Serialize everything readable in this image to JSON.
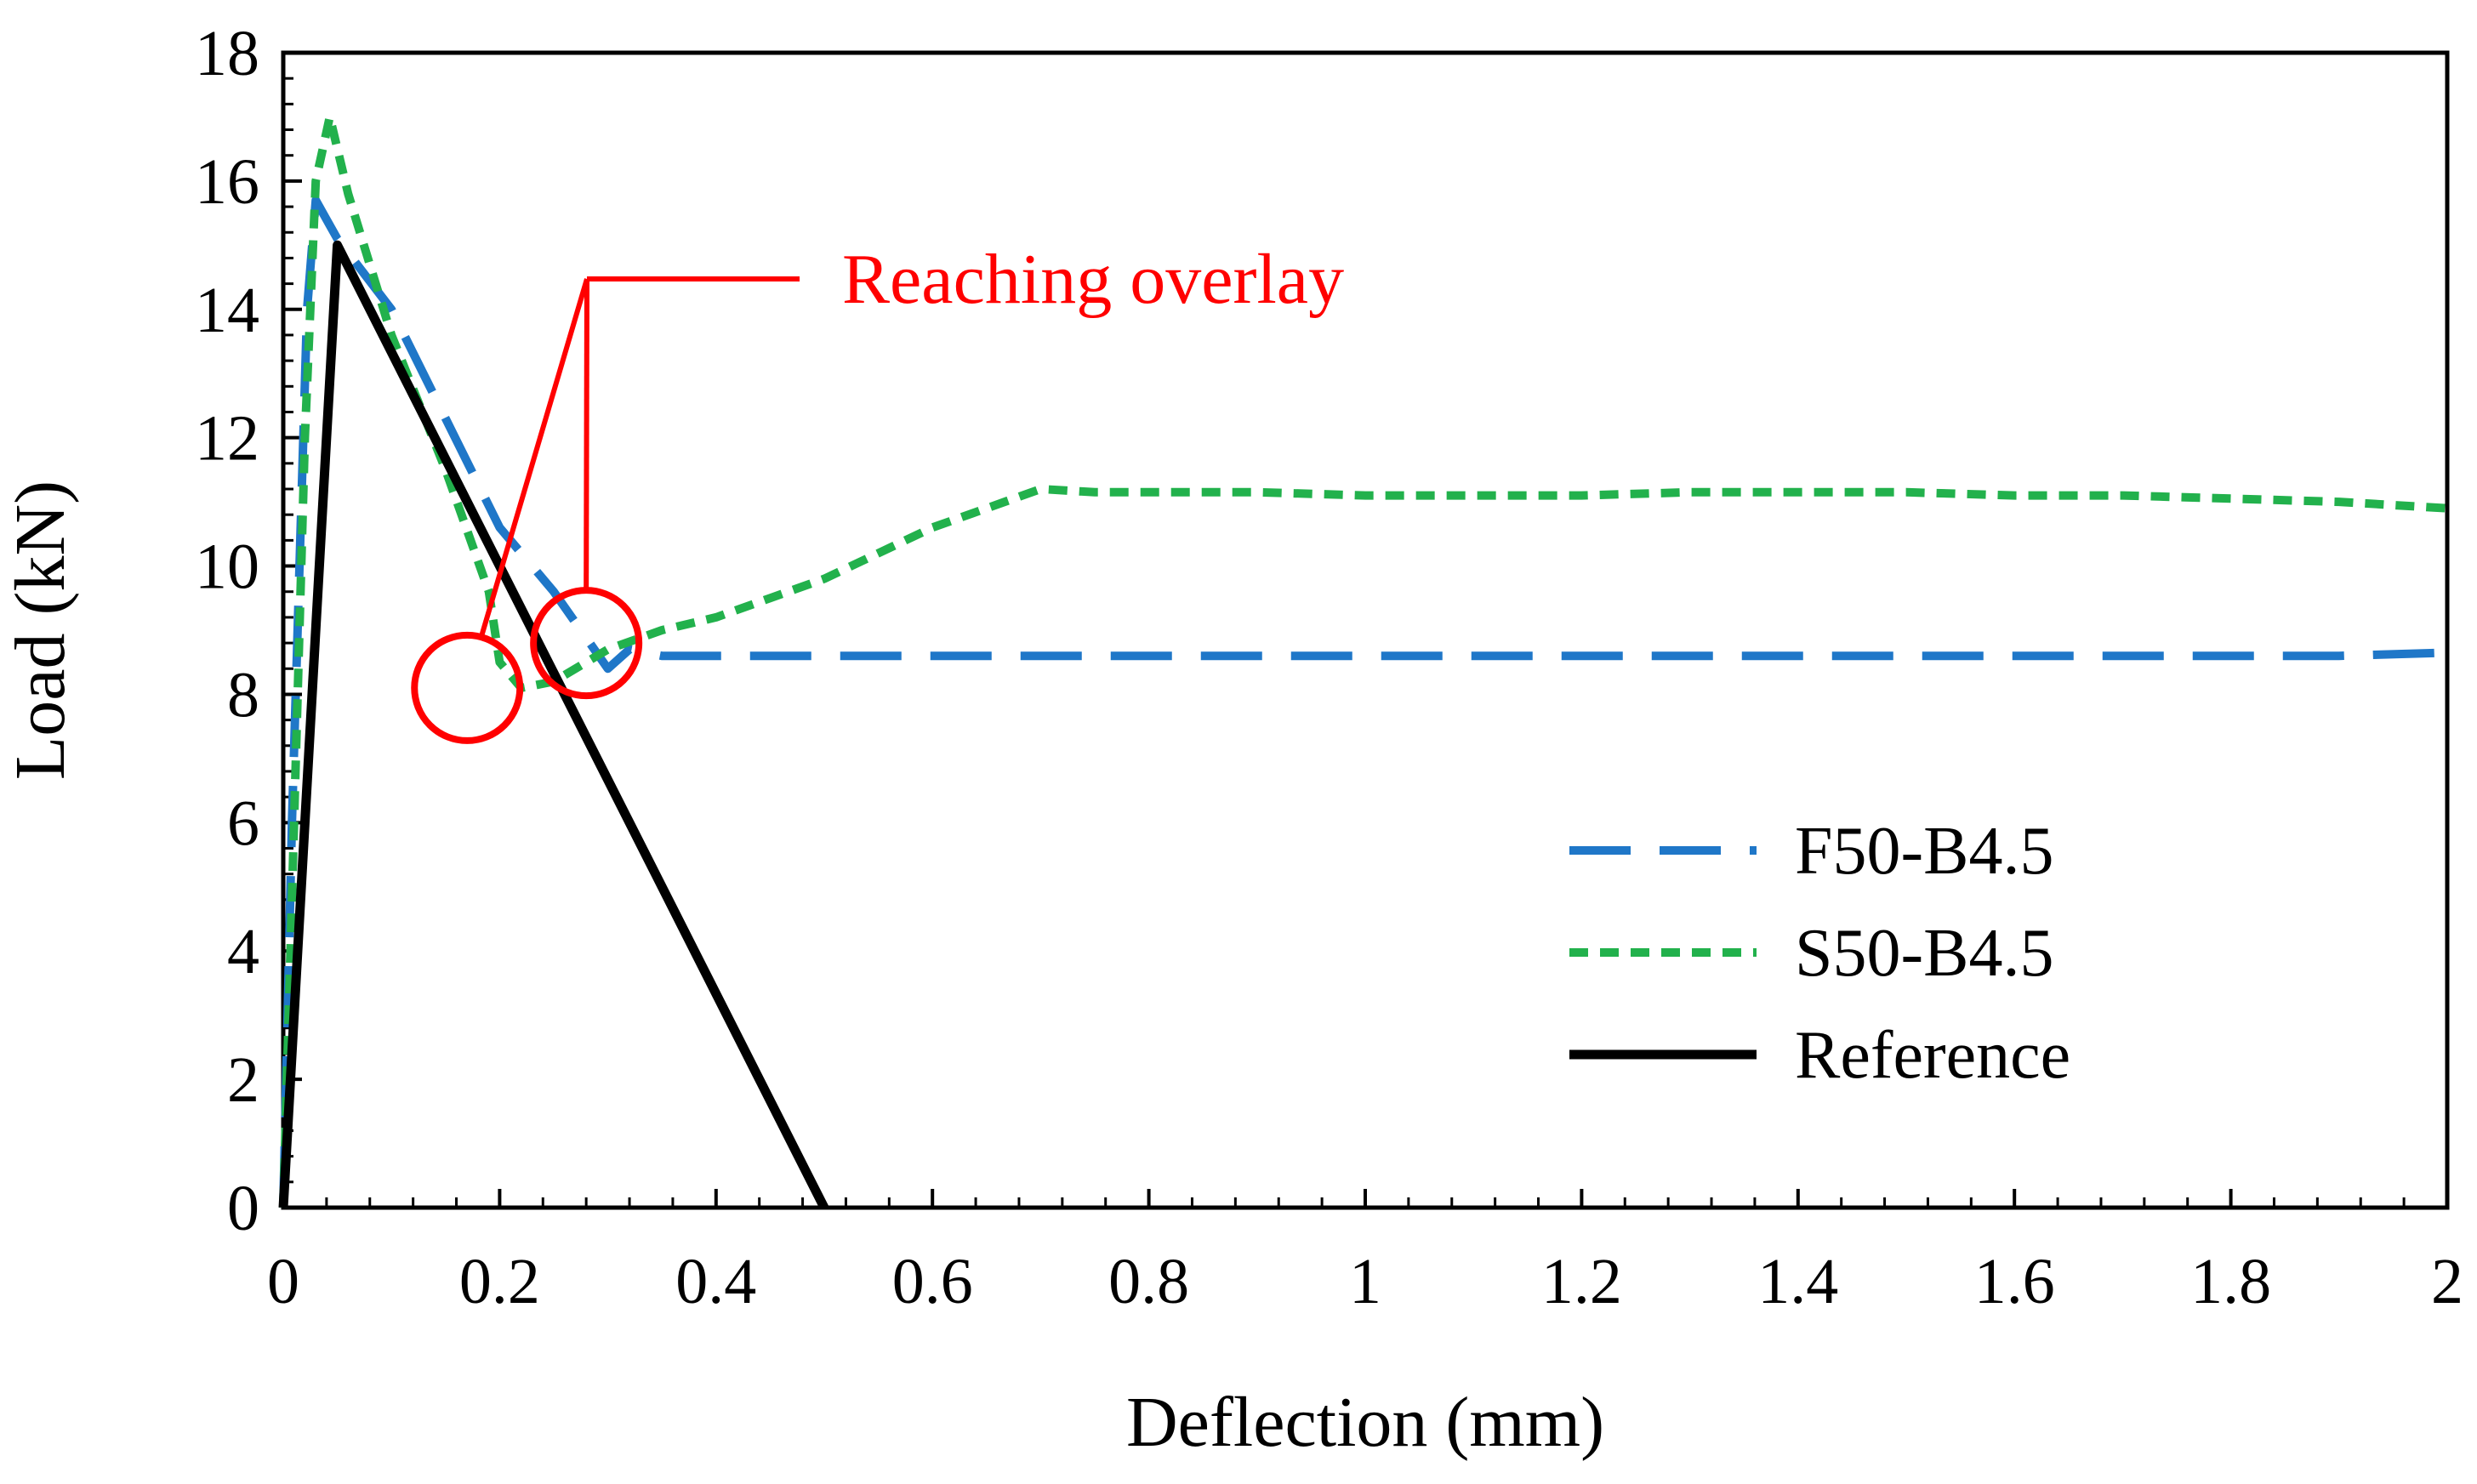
{
  "chart_data": {
    "type": "line",
    "xlabel": "Deflection (mm)",
    "ylabel": "Load (kN)",
    "xlim": [
      0,
      2
    ],
    "ylim": [
      0,
      18
    ],
    "x_ticks": [
      "0",
      "0.2",
      "0.4",
      "0.6",
      "0.8",
      "1",
      "1.2",
      "1.4",
      "1.6",
      "1.8",
      "2"
    ],
    "x_tick_values": [
      0,
      0.2,
      0.4,
      0.6,
      0.8,
      1.0,
      1.2,
      1.4,
      1.6,
      1.8,
      2.0
    ],
    "y_ticks": [
      "0",
      "2",
      "4",
      "6",
      "8",
      "10",
      "12",
      "14",
      "16",
      "18"
    ],
    "y_tick_values": [
      0,
      2,
      4,
      6,
      8,
      10,
      12,
      14,
      16,
      18
    ],
    "grid": false,
    "legend_position": "bottom-right",
    "series": [
      {
        "name": "F50-B4.5",
        "color": "#1f77c8",
        "dash": "long-dash",
        "x": [
          0,
          0.008,
          0.015,
          0.022,
          0.03,
          0.05,
          0.1,
          0.15,
          0.2,
          0.25,
          0.3,
          0.32,
          0.35,
          0.4,
          0.5,
          0.6,
          0.7,
          0.8,
          0.9,
          1.0,
          1.1,
          1.2,
          1.3,
          1.4,
          1.5,
          1.6,
          1.7,
          1.8,
          1.9,
          2.0
        ],
        "y": [
          0,
          6,
          10,
          14,
          15.7,
          15.1,
          14.0,
          12.3,
          10.6,
          9.6,
          8.4,
          8.7,
          8.6,
          8.6,
          8.6,
          8.6,
          8.6,
          8.6,
          8.6,
          8.6,
          8.6,
          8.6,
          8.6,
          8.6,
          8.6,
          8.6,
          8.6,
          8.6,
          8.6,
          8.65
        ]
      },
      {
        "name": "S50-B4.5",
        "color": "#22b14c",
        "dash": "short-dash",
        "x": [
          0,
          0.01,
          0.02,
          0.03,
          0.043,
          0.06,
          0.1,
          0.15,
          0.19,
          0.2,
          0.22,
          0.25,
          0.3,
          0.35,
          0.4,
          0.45,
          0.5,
          0.55,
          0.6,
          0.65,
          0.7,
          0.75,
          0.8,
          0.9,
          1.0,
          1.1,
          1.2,
          1.3,
          1.4,
          1.5,
          1.6,
          1.7,
          1.8,
          1.9,
          2.0
        ],
        "y": [
          0,
          6,
          12,
          16,
          17.0,
          15.8,
          13.6,
          11.5,
          9.6,
          8.5,
          8.1,
          8.2,
          8.7,
          9.0,
          9.2,
          9.5,
          9.8,
          10.2,
          10.6,
          10.9,
          11.2,
          11.15,
          11.15,
          11.15,
          11.1,
          11.1,
          11.1,
          11.15,
          11.15,
          11.15,
          11.1,
          11.1,
          11.05,
          11.0,
          10.9
        ]
      },
      {
        "name": "Reference",
        "color": "#000000",
        "dash": "solid",
        "x": [
          0,
          0.05,
          0.5
        ],
        "y": [
          0,
          15.0,
          0
        ]
      }
    ],
    "annotations": [
      {
        "text": "Reaching overlay",
        "color": "#ff0000",
        "circles": [
          {
            "x": 0.17,
            "y": 8.1
          },
          {
            "x": 0.28,
            "y": 8.8
          }
        ]
      }
    ]
  }
}
